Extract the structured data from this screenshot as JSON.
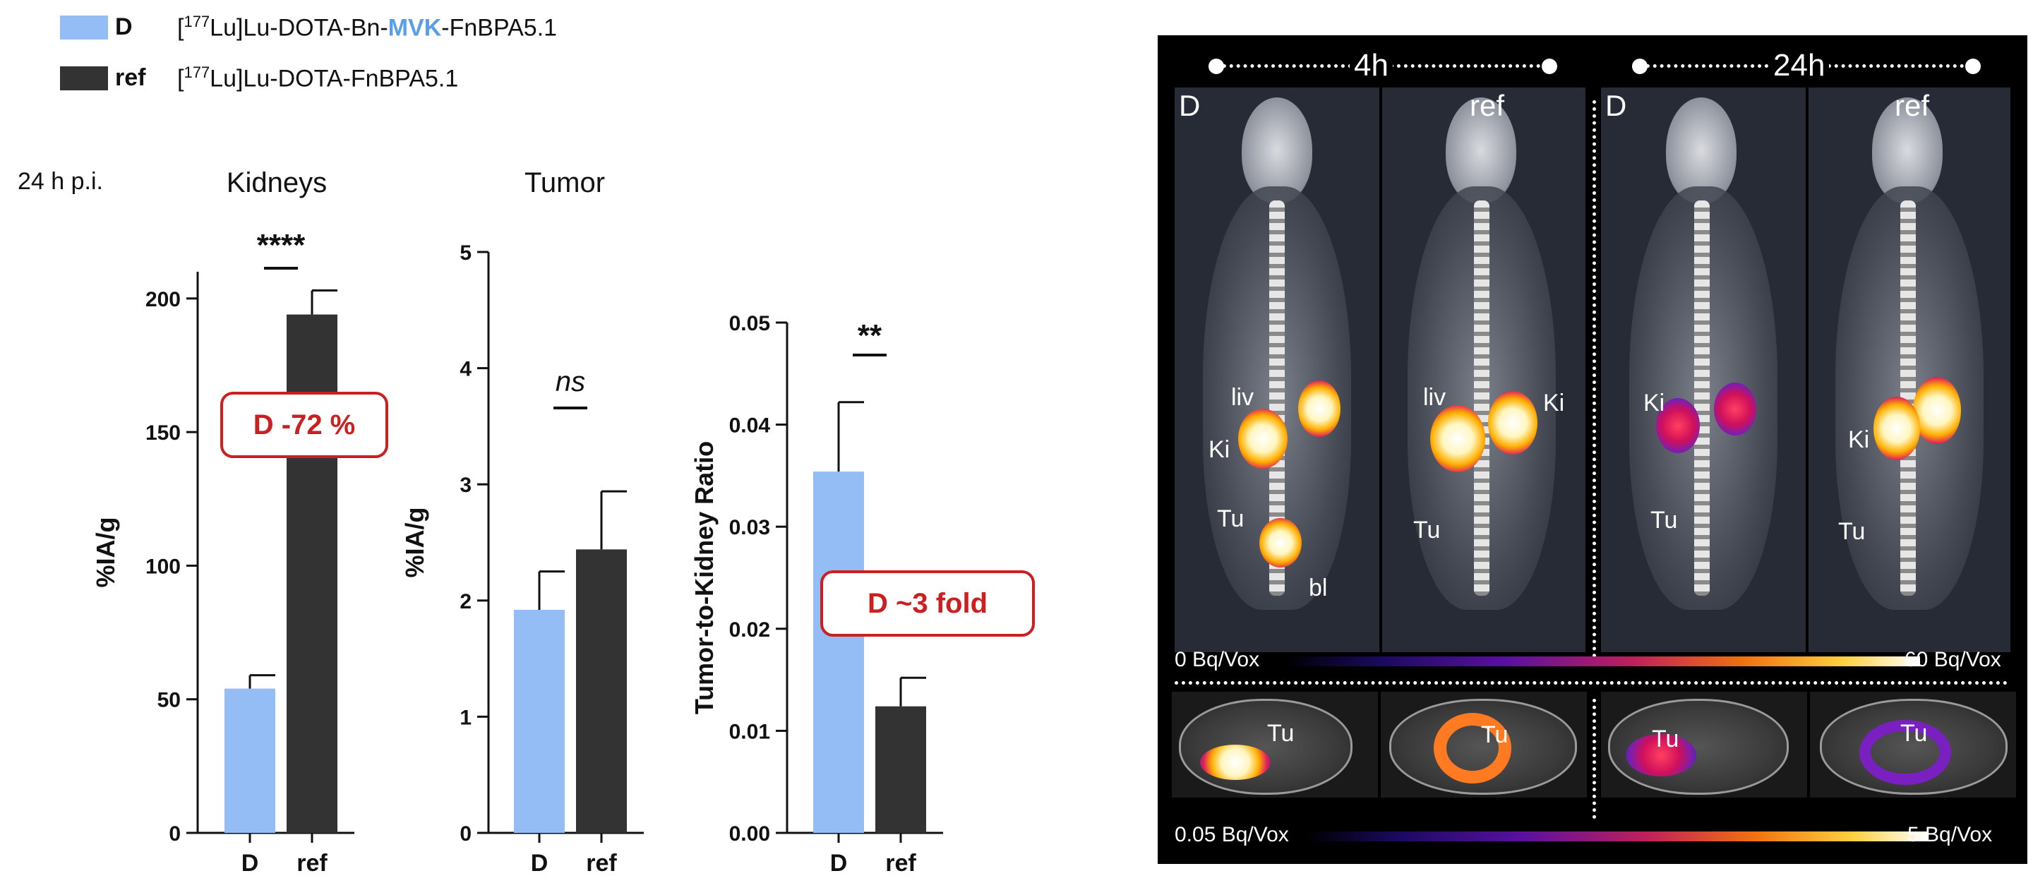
{
  "legend": [
    {
      "label": "D",
      "prefix": "[",
      "sup": "177",
      "compound_pre": "Lu]Lu-DOTA-Bn-",
      "highlight": "MVK",
      "compound_post": "-FnBPA5.1",
      "color": "#94bdf5",
      "highlight_color": "#5b9ee8"
    },
    {
      "label": "ref",
      "prefix": "[",
      "sup": "177",
      "compound_pre": "Lu]Lu-DOTA-FnBPA5.1",
      "highlight": "",
      "compound_post": "",
      "color": "#333333"
    }
  ],
  "time_label": "24 h p.i.",
  "chart_data": [
    {
      "type": "bar",
      "title": "Kidneys",
      "ylabel": "%IA/g",
      "xlabel": "",
      "categories": [
        "D",
        "ref"
      ],
      "values": [
        54,
        194
      ],
      "errors": [
        5,
        9
      ],
      "ylim": [
        0,
        210
      ],
      "yticks": [
        0,
        50,
        100,
        150,
        200
      ],
      "ytick_labels": [
        "0",
        "50",
        "100",
        "150",
        "200"
      ],
      "colors": [
        "#94bdf5",
        "#333333"
      ],
      "significance": "****",
      "callout": "D -72 %"
    },
    {
      "type": "bar",
      "title": "Tumor",
      "ylabel": "%IA/g",
      "xlabel": "",
      "categories": [
        "D",
        "ref"
      ],
      "values": [
        1.92,
        2.44
      ],
      "errors": [
        0.33,
        0.5
      ],
      "ylim": [
        0,
        5
      ],
      "yticks": [
        0,
        1,
        2,
        3,
        4,
        5
      ],
      "ytick_labels": [
        "0",
        "1",
        "2",
        "3",
        "4",
        "5"
      ],
      "colors": [
        "#94bdf5",
        "#333333"
      ],
      "significance": "ns"
    },
    {
      "type": "bar",
      "title": "",
      "ylabel": "Tumor-to-Kidney Ratio",
      "xlabel": "",
      "categories": [
        "D",
        "ref"
      ],
      "values": [
        0.0354,
        0.0124
      ],
      "errors": [
        0.0068,
        0.0028
      ],
      "ylim": [
        0,
        0.05
      ],
      "yticks": [
        0,
        0.01,
        0.02,
        0.03,
        0.04,
        0.05
      ],
      "ytick_labels": [
        "0.00",
        "0.01",
        "0.02",
        "0.03",
        "0.04",
        "0.05"
      ],
      "colors": [
        "#94bdf5",
        "#333333"
      ],
      "significance": "**",
      "callout": "D ~3 fold"
    }
  ],
  "imaging": {
    "timepoints": [
      "4h",
      "24h"
    ],
    "scan_labels": [
      "D",
      "ref",
      "D",
      "ref"
    ],
    "organs": {
      "s1": [
        "liv",
        "Ki",
        "Tu",
        "bl"
      ],
      "s2": [
        "liv",
        "Ki",
        "Tu"
      ],
      "s3": [
        "Ki",
        "Tu"
      ],
      "s4": [
        "Ki",
        "Tu"
      ]
    },
    "slice_labels": [
      "Tu",
      "Tu",
      "Tu",
      "Tu"
    ],
    "colorbar_top": {
      "min": "0 Bq/Vox",
      "max": "60 Bq/Vox"
    },
    "colorbar_bottom": {
      "min": "0.05 Bq/Vox",
      "max": "5 Bq/Vox"
    }
  }
}
